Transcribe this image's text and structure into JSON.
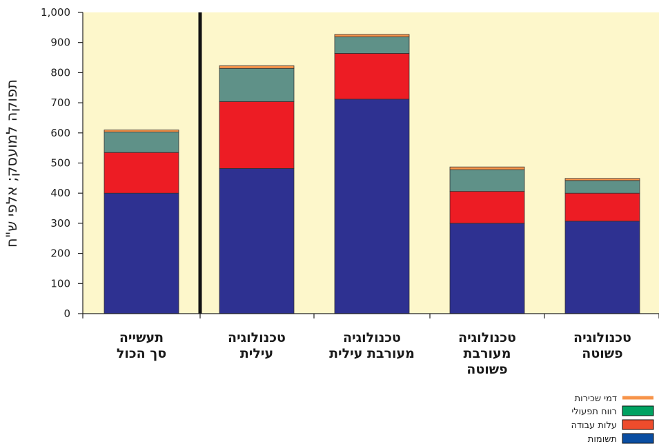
{
  "chart_data": {
    "type": "bar",
    "stacked": true,
    "title": "",
    "xlabel": "",
    "ylabel": "תפוקה למועסק; אלפי ש\"ח",
    "ylim": [
      0,
      1000
    ],
    "yticks": [
      0,
      100,
      200,
      300,
      400,
      500,
      600,
      700,
      800,
      900,
      1000
    ],
    "ytick_labels": [
      "0",
      "100",
      "200",
      "300",
      "400",
      "500",
      "600",
      "700",
      "800",
      "900",
      "1,000"
    ],
    "grid": false,
    "legend_position": "bottom-right",
    "categories": [
      [
        "תעשייה",
        "סך הכול"
      ],
      [
        "טכנולוגיה",
        "עילית"
      ],
      [
        "טכנולוגיה",
        "מעורבת עילית"
      ],
      [
        "טכנולוגיה",
        "מעורבת",
        "פשוטה"
      ],
      [
        "טכנולוגיה",
        "פשוטה"
      ]
    ],
    "series": [
      {
        "name": "תשומות",
        "color": "#2e3191",
        "values": [
          400,
          482,
          712,
          300,
          307
        ]
      },
      {
        "name": "עלות עבודה",
        "color": "#ed1c24",
        "values": [
          135,
          222,
          152,
          106,
          93
        ]
      },
      {
        "name": "רווח תפעולי",
        "color": "#5f9188",
        "values": [
          68,
          110,
          55,
          72,
          42
        ]
      },
      {
        "name": "דמי שכירות",
        "color": "#f7944a",
        "values": [
          7,
          9,
          8,
          9,
          7
        ]
      }
    ],
    "legend": [
      {
        "name": "דמי שכירות",
        "color": "#f7944a"
      },
      {
        "name": "רווח תפעולי",
        "color": "#00a261"
      },
      {
        "name": "עלות עבודה",
        "color": "#ee4c2c"
      },
      {
        "name": "תשומות",
        "color": "#0a4ea2"
      }
    ],
    "colors": {
      "plot_background": "#fdf7cb",
      "divider": "#111111"
    }
  }
}
